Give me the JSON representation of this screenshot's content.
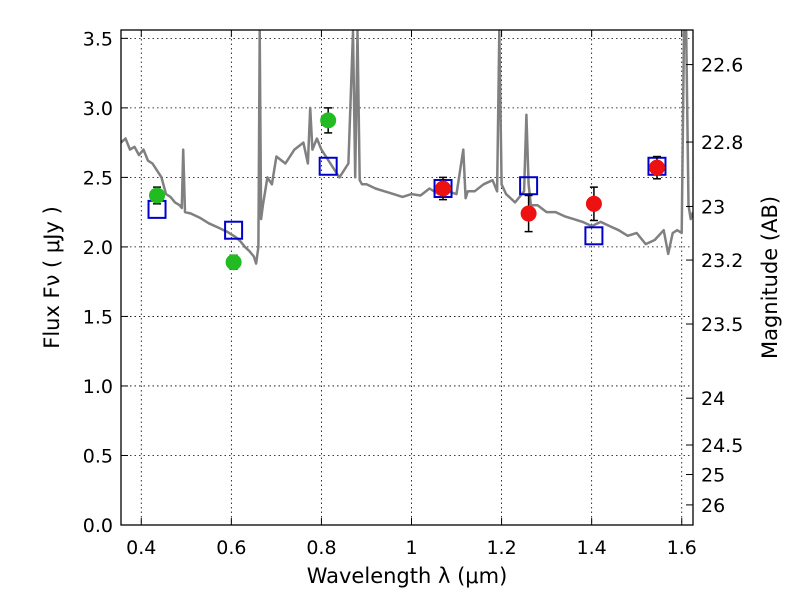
{
  "chart_data": {
    "type": "scatter",
    "xlabel": "Wavelength  λ (μm)",
    "ylabel": "Flux  Fν  ( μJy )",
    "y2label": "Magnitude (AB)",
    "xlim": [
      0.355,
      1.625
    ],
    "ylim": [
      0.0,
      3.56
    ],
    "xticks": [
      "0.4",
      "0.6",
      "0.8",
      "1",
      "1.2",
      "1.4",
      "1.6"
    ],
    "xtick_values": [
      0.4,
      0.6,
      0.8,
      1.0,
      1.2,
      1.4,
      1.6
    ],
    "yticks": [
      "0.0",
      "0.5",
      "1.0",
      "1.5",
      "2.0",
      "2.5",
      "3.0",
      "3.5"
    ],
    "ytick_values": [
      0.0,
      0.5,
      1.0,
      1.5,
      2.0,
      2.5,
      3.0,
      3.5
    ],
    "y2ticks": [
      "22.6",
      "22.8",
      "23",
      "23.2",
      "23.5",
      "24",
      "24.5",
      "25",
      "26"
    ],
    "y2tick_values": [
      22.6,
      22.8,
      23.0,
      23.2,
      23.5,
      24.0,
      24.5,
      25.0,
      26.0
    ],
    "grid": true,
    "colors": {
      "model": "#808080",
      "green_points": "#22bb22",
      "red_points": "#ee1111",
      "model_squares": "#0000cc",
      "errorbar": "#000000"
    },
    "series": [
      {
        "kind": "line",
        "x": [
          0.355,
          0.365,
          0.375,
          0.385,
          0.395,
          0.405,
          0.415,
          0.425,
          0.435,
          0.445,
          0.455,
          0.465,
          0.475,
          0.485,
          0.49,
          0.493,
          0.497,
          0.51,
          0.53,
          0.55,
          0.57,
          0.59,
          0.61,
          0.62,
          0.63,
          0.64,
          0.65,
          0.655,
          0.66,
          0.663,
          0.666,
          0.67,
          0.68,
          0.69,
          0.7,
          0.72,
          0.74,
          0.76,
          0.77,
          0.775,
          0.78,
          0.79,
          0.8,
          0.82,
          0.84,
          0.86,
          0.87,
          0.875,
          0.88,
          0.885,
          0.89,
          0.9,
          0.92,
          0.94,
          0.96,
          0.98,
          1.0,
          1.02,
          1.04,
          1.06,
          1.08,
          1.1,
          1.115,
          1.12,
          1.125,
          1.14,
          1.16,
          1.18,
          1.19,
          1.195,
          1.2,
          1.21,
          1.23,
          1.25,
          1.255,
          1.26,
          1.265,
          1.28,
          1.3,
          1.32,
          1.34,
          1.36,
          1.38,
          1.4,
          1.42,
          1.44,
          1.46,
          1.48,
          1.5,
          1.52,
          1.54,
          1.56,
          1.57,
          1.58,
          1.59,
          1.6,
          1.605,
          1.61,
          1.615,
          1.62,
          1.625
        ],
        "y": [
          2.75,
          2.78,
          2.7,
          2.72,
          2.66,
          2.7,
          2.62,
          2.6,
          2.55,
          2.5,
          2.38,
          2.36,
          2.32,
          2.3,
          2.28,
          2.7,
          2.25,
          2.24,
          2.21,
          2.17,
          2.14,
          2.11,
          2.07,
          2.04,
          2.0,
          1.97,
          1.93,
          1.88,
          2.0,
          3.55,
          2.2,
          2.3,
          2.5,
          2.45,
          2.65,
          2.6,
          2.7,
          2.75,
          2.6,
          3.0,
          2.7,
          2.78,
          2.7,
          2.6,
          2.5,
          2.6,
          3.55,
          2.5,
          3.55,
          2.48,
          2.45,
          2.45,
          2.42,
          2.4,
          2.38,
          2.36,
          2.38,
          2.37,
          2.42,
          2.38,
          2.4,
          2.38,
          2.7,
          2.35,
          2.4,
          2.4,
          2.45,
          2.48,
          2.4,
          3.55,
          2.45,
          2.38,
          2.32,
          2.4,
          2.95,
          2.45,
          2.3,
          2.3,
          2.25,
          2.25,
          2.22,
          2.2,
          2.18,
          2.15,
          2.18,
          2.15,
          2.12,
          2.08,
          2.1,
          2.02,
          2.05,
          2.12,
          1.95,
          2.1,
          2.12,
          2.1,
          3.55,
          3.55,
          2.3,
          2.2,
          2.25
        ]
      },
      {
        "kind": "squares",
        "x": [
          0.435,
          0.605,
          0.815,
          1.07,
          1.26,
          1.405,
          1.545
        ],
        "y": [
          2.27,
          2.12,
          2.58,
          2.42,
          2.44,
          2.08,
          2.58
        ]
      },
      {
        "kind": "points",
        "x": [
          0.435,
          0.605,
          0.815
        ],
        "y": [
          2.37,
          1.89,
          2.91
        ],
        "yerr": [
          0.06,
          0.05,
          0.09
        ]
      },
      {
        "kind": "points",
        "x": [
          1.07,
          1.26,
          1.405,
          1.545
        ],
        "y": [
          2.42,
          2.24,
          2.31,
          2.57
        ],
        "yerr": [
          0.08,
          0.13,
          0.12,
          0.08
        ]
      }
    ]
  }
}
